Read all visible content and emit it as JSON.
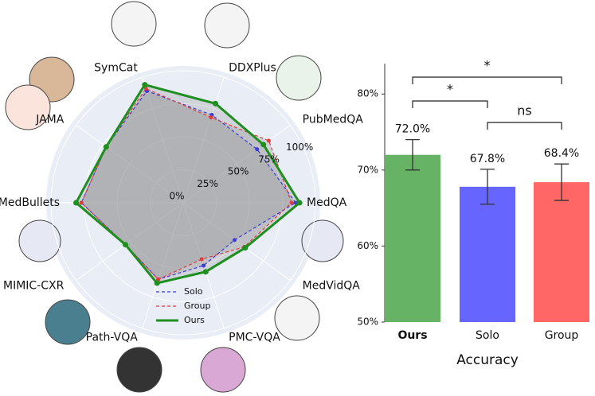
{
  "chart_data": [
    {
      "type": "radar",
      "categories": [
        "MedQA",
        "PubMedQA",
        "DDXPlus",
        "SymCat",
        "JAMA",
        "MedBullets",
        "MIMIC-CXR",
        "Path-VQA",
        "PMC-VQA",
        "MedVidQA"
      ],
      "rlim": [
        0,
        100
      ],
      "rticks": [
        {
          "value": 0,
          "label": "0%"
        },
        {
          "value": 25,
          "label": "25%"
        },
        {
          "value": 50,
          "label": "50%"
        },
        {
          "value": 75,
          "label": "75%"
        },
        {
          "value": 100,
          "label": "100%"
        }
      ],
      "series": [
        {
          "name": "Solo",
          "color": "#3b3bdb",
          "dash": true,
          "values": [
            85,
            69,
            70,
            89,
            72,
            77,
            54,
            61,
            50,
            48
          ]
        },
        {
          "name": "Group",
          "color": "#e23b3b",
          "dash": true,
          "values": [
            82,
            80,
            68,
            91,
            72,
            77,
            54,
            61,
            45,
            57
          ]
        },
        {
          "name": "Ours",
          "color": "#1f8f1f",
          "dash": false,
          "values": [
            88,
            75,
            79,
            94,
            72,
            81,
            54,
            64,
            55,
            58
          ]
        }
      ]
    },
    {
      "type": "bar",
      "categories": [
        "Ours",
        "Solo",
        "Group"
      ],
      "values": [
        72.0,
        67.8,
        68.4
      ],
      "value_labels": [
        "72.0%",
        "67.8%",
        "68.4%"
      ],
      "errors": [
        2.0,
        2.3,
        2.4
      ],
      "colors": [
        "#66b366",
        "#6666ff",
        "#ff6666"
      ],
      "xlabel": "Accuracy",
      "ylim": [
        50,
        84
      ],
      "yticks": [
        {
          "value": 50,
          "label": "50%"
        },
        {
          "value": 60,
          "label": "60%"
        },
        {
          "value": 70,
          "label": "70%"
        },
        {
          "value": 80,
          "label": "80%"
        }
      ],
      "annotations": [
        {
          "text": "*",
          "from": "Ours",
          "to": "Group"
        },
        {
          "text": "*",
          "from": "Ours",
          "to": "Solo"
        },
        {
          "text": "ns",
          "from": "Solo",
          "to": "Group"
        }
      ]
    }
  ]
}
